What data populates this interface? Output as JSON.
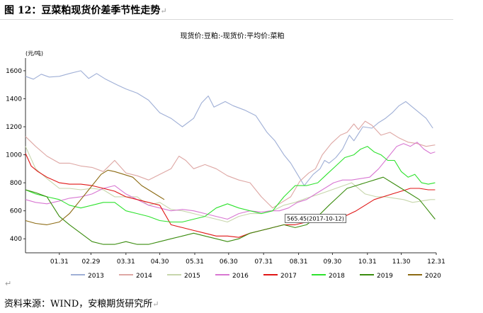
{
  "figure": {
    "title": "图 12：豆菜粕现货价差季节性走势",
    "paragraph_mark": "↵",
    "source": "资料来源：WIND，安粮期货研究所"
  },
  "chart_data": {
    "type": "line",
    "title": "现货价:豆粕:-现货价:平均价:菜粕",
    "ylabel": "(元/吨)",
    "xlabel": "",
    "ylim": [
      300,
      1650
    ],
    "yticks": [
      400,
      600,
      800,
      1000,
      1200,
      1400,
      1600
    ],
    "xticks": [
      "01.31",
      "02.29",
      "03.31",
      "04.30",
      "05.31",
      "06.30",
      "07.31",
      "08.31",
      "09.30",
      "10.31",
      "11.30",
      "12.31"
    ],
    "x_unit": "day_of_year",
    "grid": false,
    "legend_position": "bottom",
    "tooltip": {
      "series": "2017",
      "x": 285,
      "text": "565.45(2017-10-12)"
    },
    "series": [
      {
        "name": "2013",
        "color": "#9fafd6",
        "points": [
          [
            1,
            1560
          ],
          [
            8,
            1540
          ],
          [
            15,
            1575
          ],
          [
            22,
            1555
          ],
          [
            31,
            1560
          ],
          [
            40,
            1580
          ],
          [
            50,
            1600
          ],
          [
            57,
            1545
          ],
          [
            64,
            1580
          ],
          [
            72,
            1540
          ],
          [
            82,
            1500
          ],
          [
            90,
            1470
          ],
          [
            100,
            1440
          ],
          [
            110,
            1390
          ],
          [
            120,
            1300
          ],
          [
            130,
            1260
          ],
          [
            140,
            1200
          ],
          [
            150,
            1260
          ],
          [
            157,
            1370
          ],
          [
            163,
            1420
          ],
          [
            168,
            1340
          ],
          [
            178,
            1380
          ],
          [
            185,
            1350
          ],
          [
            195,
            1320
          ],
          [
            205,
            1280
          ],
          [
            215,
            1160
          ],
          [
            222,
            1100
          ],
          [
            230,
            1000
          ],
          [
            236,
            940
          ],
          [
            242,
            860
          ],
          [
            248,
            780
          ],
          [
            252,
            820
          ],
          [
            256,
            860
          ],
          [
            262,
            900
          ],
          [
            266,
            960
          ],
          [
            270,
            940
          ],
          [
            276,
            980
          ],
          [
            282,
            1040
          ],
          [
            288,
            1140
          ],
          [
            292,
            1100
          ],
          [
            300,
            1200
          ],
          [
            308,
            1190
          ],
          [
            314,
            1230
          ],
          [
            320,
            1260
          ],
          [
            326,
            1300
          ],
          [
            332,
            1350
          ],
          [
            338,
            1380
          ],
          [
            344,
            1340
          ],
          [
            350,
            1300
          ],
          [
            356,
            1260
          ],
          [
            362,
            1190
          ]
        ]
      },
      {
        "name": "2014",
        "color": "#dea7a4",
        "points": [
          [
            1,
            1130
          ],
          [
            10,
            1060
          ],
          [
            20,
            990
          ],
          [
            31,
            940
          ],
          [
            40,
            940
          ],
          [
            50,
            920
          ],
          [
            60,
            910
          ],
          [
            70,
            880
          ],
          [
            80,
            960
          ],
          [
            90,
            870
          ],
          [
            100,
            850
          ],
          [
            110,
            820
          ],
          [
            120,
            860
          ],
          [
            130,
            900
          ],
          [
            137,
            990
          ],
          [
            143,
            960
          ],
          [
            150,
            900
          ],
          [
            160,
            930
          ],
          [
            170,
            900
          ],
          [
            180,
            850
          ],
          [
            190,
            820
          ],
          [
            200,
            800
          ],
          [
            210,
            700
          ],
          [
            220,
            620
          ],
          [
            228,
            660
          ],
          [
            236,
            700
          ],
          [
            244,
            810
          ],
          [
            252,
            870
          ],
          [
            258,
            900
          ],
          [
            264,
            1000
          ],
          [
            272,
            1080
          ],
          [
            280,
            1140
          ],
          [
            286,
            1160
          ],
          [
            292,
            1220
          ],
          [
            296,
            1180
          ],
          [
            302,
            1240
          ],
          [
            308,
            1210
          ],
          [
            316,
            1140
          ],
          [
            324,
            1160
          ],
          [
            332,
            1120
          ],
          [
            340,
            1090
          ],
          [
            348,
            1080
          ],
          [
            356,
            1060
          ],
          [
            364,
            1070
          ]
        ]
      },
      {
        "name": "2015",
        "color": "#c7d6ac",
        "points": [
          [
            1,
            1060
          ],
          [
            10,
            900
          ],
          [
            20,
            830
          ],
          [
            31,
            760
          ],
          [
            40,
            760
          ],
          [
            50,
            750
          ],
          [
            60,
            760
          ],
          [
            70,
            750
          ],
          [
            80,
            700
          ],
          [
            90,
            700
          ],
          [
            100,
            700
          ],
          [
            110,
            640
          ],
          [
            120,
            660
          ],
          [
            130,
            610
          ],
          [
            140,
            600
          ],
          [
            150,
            580
          ],
          [
            160,
            560
          ],
          [
            170,
            540
          ],
          [
            180,
            520
          ],
          [
            190,
            560
          ],
          [
            200,
            580
          ],
          [
            210,
            580
          ],
          [
            220,
            600
          ],
          [
            230,
            640
          ],
          [
            240,
            660
          ],
          [
            250,
            690
          ],
          [
            262,
            720
          ],
          [
            276,
            760
          ],
          [
            290,
            800
          ],
          [
            302,
            720
          ],
          [
            312,
            700
          ],
          [
            320,
            700
          ],
          [
            328,
            690
          ],
          [
            336,
            680
          ],
          [
            344,
            660
          ],
          [
            352,
            670
          ],
          [
            360,
            680
          ],
          [
            364,
            680
          ]
        ]
      },
      {
        "name": "2016",
        "color": "#d877d2",
        "points": [
          [
            1,
            680
          ],
          [
            10,
            660
          ],
          [
            20,
            650
          ],
          [
            31,
            670
          ],
          [
            40,
            690
          ],
          [
            50,
            700
          ],
          [
            60,
            720
          ],
          [
            70,
            760
          ],
          [
            80,
            780
          ],
          [
            90,
            720
          ],
          [
            100,
            680
          ],
          [
            110,
            640
          ],
          [
            120,
            620
          ],
          [
            130,
            600
          ],
          [
            140,
            610
          ],
          [
            150,
            600
          ],
          [
            160,
            580
          ],
          [
            170,
            560
          ],
          [
            180,
            540
          ],
          [
            190,
            580
          ],
          [
            200,
            600
          ],
          [
            210,
            590
          ],
          [
            218,
            600
          ],
          [
            226,
            600
          ],
          [
            234,
            620
          ],
          [
            242,
            660
          ],
          [
            250,
            680
          ],
          [
            258,
            720
          ],
          [
            266,
            760
          ],
          [
            274,
            800
          ],
          [
            282,
            820
          ],
          [
            290,
            820
          ],
          [
            298,
            830
          ],
          [
            306,
            840
          ],
          [
            314,
            900
          ],
          [
            322,
            980
          ],
          [
            330,
            1060
          ],
          [
            336,
            1080
          ],
          [
            342,
            1060
          ],
          [
            348,
            1090
          ],
          [
            354,
            1040
          ],
          [
            360,
            1010
          ],
          [
            364,
            1020
          ]
        ]
      },
      {
        "name": "2017",
        "color": "#e01616",
        "points": [
          [
            1,
            1010
          ],
          [
            6,
            920
          ],
          [
            12,
            880
          ],
          [
            20,
            840
          ],
          [
            31,
            800
          ],
          [
            40,
            790
          ],
          [
            50,
            790
          ],
          [
            60,
            780
          ],
          [
            70,
            760
          ],
          [
            80,
            740
          ],
          [
            90,
            700
          ],
          [
            100,
            680
          ],
          [
            110,
            660
          ],
          [
            120,
            640
          ],
          [
            130,
            500
          ],
          [
            140,
            480
          ],
          [
            150,
            460
          ],
          [
            160,
            440
          ],
          [
            170,
            420
          ],
          [
            180,
            420
          ],
          [
            190,
            410
          ],
          [
            200,
            440
          ],
          [
            210,
            460
          ],
          [
            220,
            480
          ],
          [
            230,
            500
          ],
          [
            240,
            500
          ],
          [
            250,
            520
          ],
          [
            260,
            540
          ],
          [
            270,
            560
          ],
          [
            285,
            565
          ],
          [
            294,
            600
          ],
          [
            302,
            640
          ],
          [
            310,
            680
          ],
          [
            318,
            700
          ],
          [
            326,
            720
          ],
          [
            334,
            740
          ],
          [
            342,
            760
          ],
          [
            350,
            760
          ],
          [
            358,
            750
          ],
          [
            364,
            750
          ]
        ]
      },
      {
        "name": "2018",
        "color": "#2de22d",
        "points": [
          [
            1,
            750
          ],
          [
            10,
            720
          ],
          [
            20,
            700
          ],
          [
            31,
            680
          ],
          [
            40,
            640
          ],
          [
            50,
            620
          ],
          [
            60,
            640
          ],
          [
            70,
            660
          ],
          [
            80,
            660
          ],
          [
            90,
            600
          ],
          [
            100,
            580
          ],
          [
            110,
            560
          ],
          [
            120,
            530
          ],
          [
            130,
            520
          ],
          [
            140,
            520
          ],
          [
            150,
            540
          ],
          [
            160,
            560
          ],
          [
            170,
            620
          ],
          [
            180,
            650
          ],
          [
            190,
            620
          ],
          [
            200,
            600
          ],
          [
            210,
            580
          ],
          [
            220,
            600
          ],
          [
            230,
            700
          ],
          [
            240,
            780
          ],
          [
            250,
            780
          ],
          [
            260,
            800
          ],
          [
            268,
            860
          ],
          [
            276,
            920
          ],
          [
            284,
            980
          ],
          [
            292,
            1000
          ],
          [
            298,
            1040
          ],
          [
            304,
            1060
          ],
          [
            310,
            1020
          ],
          [
            316,
            1000
          ],
          [
            322,
            960
          ],
          [
            328,
            960
          ],
          [
            334,
            880
          ],
          [
            340,
            840
          ],
          [
            346,
            860
          ],
          [
            352,
            800
          ],
          [
            358,
            790
          ],
          [
            364,
            800
          ]
        ]
      },
      {
        "name": "2019",
        "color": "#3a8c0e",
        "points": [
          [
            1,
            750
          ],
          [
            10,
            730
          ],
          [
            20,
            700
          ],
          [
            31,
            560
          ],
          [
            40,
            500
          ],
          [
            50,
            440
          ],
          [
            60,
            380
          ],
          [
            70,
            360
          ],
          [
            80,
            360
          ],
          [
            90,
            380
          ],
          [
            100,
            360
          ],
          [
            110,
            360
          ],
          [
            120,
            380
          ],
          [
            130,
            400
          ],
          [
            140,
            420
          ],
          [
            150,
            440
          ],
          [
            160,
            420
          ],
          [
            170,
            400
          ],
          [
            180,
            380
          ],
          [
            190,
            400
          ],
          [
            200,
            440
          ],
          [
            210,
            460
          ],
          [
            220,
            480
          ],
          [
            230,
            500
          ],
          [
            240,
            480
          ],
          [
            250,
            500
          ],
          [
            260,
            560
          ],
          [
            270,
            640
          ],
          [
            278,
            700
          ],
          [
            286,
            760
          ],
          [
            294,
            780
          ],
          [
            302,
            800
          ],
          [
            310,
            820
          ],
          [
            318,
            840
          ],
          [
            326,
            800
          ],
          [
            334,
            760
          ],
          [
            342,
            720
          ],
          [
            350,
            680
          ],
          [
            356,
            620
          ],
          [
            362,
            560
          ],
          [
            364,
            540
          ]
        ]
      },
      {
        "name": "2020",
        "color": "#8c6a12",
        "points": [
          [
            1,
            530
          ],
          [
            10,
            510
          ],
          [
            20,
            500
          ],
          [
            31,
            520
          ],
          [
            40,
            580
          ],
          [
            50,
            680
          ],
          [
            60,
            780
          ],
          [
            68,
            860
          ],
          [
            74,
            890
          ],
          [
            80,
            880
          ],
          [
            88,
            860
          ],
          [
            96,
            840
          ],
          [
            104,
            780
          ],
          [
            112,
            740
          ],
          [
            120,
            700
          ],
          [
            124,
            680
          ]
        ]
      }
    ]
  }
}
